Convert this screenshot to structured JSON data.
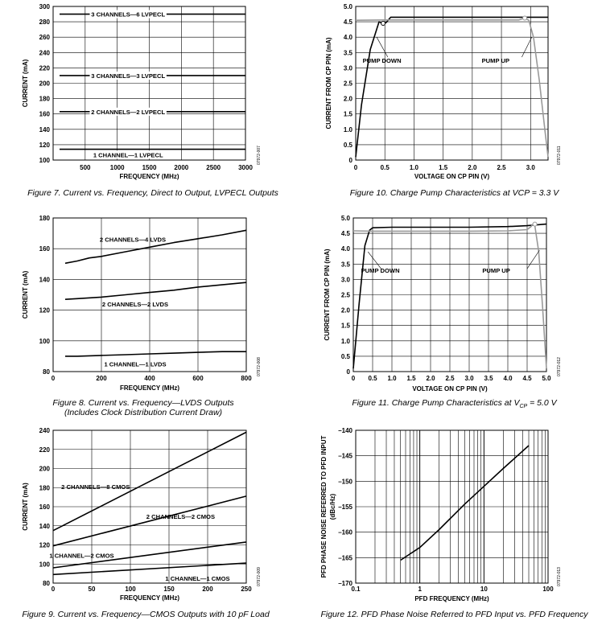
{
  "chart_data": [
    {
      "id": "fig7",
      "type": "line",
      "caption": "Figure 7. Current vs. Frequency, Direct to Output, LVPECL Outputs",
      "code": "07972-007",
      "xlabel": "FREQUENCY (MHz)",
      "ylabel": "CURRENT (mA)",
      "xlim": [
        0,
        3000
      ],
      "ylim": [
        100,
        300
      ],
      "xticks": [
        500,
        1000,
        1500,
        2000,
        2500,
        3000
      ],
      "yticks": [
        100,
        120,
        140,
        160,
        180,
        200,
        220,
        240,
        260,
        280,
        300
      ],
      "grid": true,
      "series": [
        {
          "x": [
            100,
            3000
          ],
          "y": [
            290,
            290
          ]
        },
        {
          "x": [
            100,
            3000
          ],
          "y": [
            210,
            210
          ]
        },
        {
          "x": [
            100,
            3000
          ],
          "y": [
            163,
            163
          ]
        },
        {
          "x": [
            100,
            3000
          ],
          "y": [
            114,
            114
          ]
        }
      ],
      "annotations": [
        {
          "text": "3 CHANNELS—6 LVPECL",
          "x": 1170,
          "y": 290
        },
        {
          "text": "3 CHANNELS—3 LVPECL",
          "x": 1170,
          "y": 210
        },
        {
          "text": "2 CHANNELS—2 LVPECL",
          "x": 1170,
          "y": 163
        },
        {
          "text": "1 CHANNEL—1 LVPECL",
          "x": 1170,
          "y": 107
        }
      ]
    },
    {
      "id": "fig10",
      "type": "line",
      "caption": "Figure 10. Charge Pump Characteristics at VCP = 3.3 V",
      "code": "07972-011",
      "xlabel": "VOLTAGE ON CP PIN (V)",
      "ylabel": "CURRENT FROM CP PIN (mA)",
      "xlim": [
        0,
        3.3
      ],
      "ylim": [
        0,
        5.0
      ],
      "xticks": [
        "0",
        "0.5",
        "1.0",
        "1.5",
        "2.0",
        "2.5",
        "3.0"
      ],
      "yticks": [
        "0",
        "0.5",
        "1.0",
        "1.5",
        "2.0",
        "2.5",
        "3.0",
        "3.5",
        "4.0",
        "4.5",
        "5.0"
      ],
      "grid": true,
      "series": [
        {
          "color": "#000000",
          "x": [
            0,
            0.1,
            0.25,
            0.4,
            0.47,
            0.52,
            0.6,
            1.0,
            2.0,
            3.0,
            3.3
          ],
          "y": [
            0.1,
            1.8,
            3.6,
            4.5,
            4.45,
            4.47,
            4.65,
            4.65,
            4.65,
            4.65,
            4.65
          ]
        },
        {
          "color": "#999999",
          "x": [
            0,
            0.5,
            1.0,
            2.0,
            2.8,
            2.9,
            2.97,
            3.05,
            3.15,
            3.25,
            3.3
          ],
          "y": [
            4.55,
            4.56,
            4.56,
            4.56,
            4.56,
            4.62,
            4.55,
            4.0,
            2.6,
            0.9,
            0.1
          ]
        }
      ],
      "annotations": [
        {
          "text": "PUMP DOWN",
          "x": 0.45,
          "y": 3.25
        },
        {
          "text": "PUMP UP",
          "x": 2.4,
          "y": 3.25
        }
      ]
    },
    {
      "id": "fig8",
      "type": "line",
      "caption": "Figure 8. Current vs. Frequency—LVDS Outputs",
      "caption2": "(Includes Clock Distribution Current Draw)",
      "code": "07972-008",
      "xlabel": "FREQUENCY (MHz)",
      "ylabel": "CURRENT (mA)",
      "xlim": [
        0,
        800
      ],
      "ylim": [
        80,
        180
      ],
      "xticks": [
        0,
        200,
        400,
        600,
        800
      ],
      "yticks": [
        80,
        100,
        120,
        140,
        160,
        180
      ],
      "grid": true,
      "series": [
        {
          "x": [
            50,
            100,
            150,
            200,
            300,
            400,
            500,
            600,
            700,
            800
          ],
          "y": [
            150.5,
            152,
            154,
            155,
            158,
            161,
            164,
            166.5,
            169,
            172
          ]
        },
        {
          "x": [
            50,
            100,
            200,
            300,
            400,
            500,
            600,
            700,
            800
          ],
          "y": [
            127,
            127.5,
            128.5,
            130,
            131.5,
            133,
            135,
            136.5,
            138
          ]
        },
        {
          "x": [
            50,
            100,
            200,
            300,
            400,
            500,
            600,
            700,
            800
          ],
          "y": [
            90,
            90,
            90.5,
            91,
            91.5,
            92,
            92.5,
            93,
            93
          ]
        }
      ],
      "annotations": [
        {
          "text": "2 CHANNELS—4 LVDS",
          "x": 330,
          "y": 166
        },
        {
          "text": "2 CHANNELS—2 LVDS",
          "x": 340,
          "y": 124
        },
        {
          "text": "1 CHANNEL—1 LVDS",
          "x": 340,
          "y": 85
        }
      ]
    },
    {
      "id": "fig11",
      "type": "line",
      "caption": "Figure 11. Charge Pump Characteristics at V",
      "caption_sub": "CP",
      "caption_end": " = 5.0 V",
      "code": "07972-012",
      "xlabel": "VOLTAGE ON CP PIN (V)",
      "ylabel": "CURRENT FROM CP PIN (mA)",
      "xlim": [
        0,
        5.0
      ],
      "ylim": [
        0,
        5.0
      ],
      "xticks": [
        "0",
        "0.5",
        "1.0",
        "1.5",
        "2.0",
        "2.5",
        "3.0",
        "3.5",
        "4.0",
        "4.5",
        "5.0"
      ],
      "yticks": [
        "0",
        "0.5",
        "1.0",
        "1.5",
        "2.0",
        "2.5",
        "3.0",
        "3.5",
        "4.0",
        "4.5",
        "5.0"
      ],
      "grid": true,
      "series": [
        {
          "color": "#000000",
          "x": [
            0,
            0.15,
            0.3,
            0.42,
            0.5,
            1.0,
            2.0,
            3.0,
            4.0,
            4.5,
            5.0
          ],
          "y": [
            0.1,
            2.2,
            4.1,
            4.6,
            4.68,
            4.7,
            4.7,
            4.7,
            4.72,
            4.75,
            4.8
          ]
        },
        {
          "color": "#999999",
          "x": [
            0,
            0.5,
            1.0,
            2.0,
            3.0,
            4.0,
            4.5,
            4.6,
            4.65,
            4.7,
            4.8,
            4.9,
            5.0
          ],
          "y": [
            4.58,
            4.57,
            4.57,
            4.57,
            4.57,
            4.58,
            4.62,
            4.72,
            4.8,
            4.75,
            3.9,
            2.1,
            0.1
          ]
        }
      ],
      "annotations": [
        {
          "text": "PUMP DOWN",
          "x": 0.7,
          "y": 3.3
        },
        {
          "text": "PUMP UP",
          "x": 3.7,
          "y": 3.3
        }
      ]
    },
    {
      "id": "fig9",
      "type": "line",
      "caption": "Figure 9. Current vs. Frequency—CMOS Outputs with 10 pF Load",
      "code": "07972-009",
      "xlabel": "FREQUENCY (MHz)",
      "ylabel": "CURRENT (mA)",
      "xlim": [
        0,
        250
      ],
      "ylim": [
        80,
        240
      ],
      "xticks": [
        0,
        50,
        100,
        150,
        200,
        250
      ],
      "yticks": [
        80,
        100,
        120,
        140,
        160,
        180,
        200,
        220,
        240
      ],
      "grid": true,
      "series": [
        {
          "x": [
            0,
            250
          ],
          "y": [
            135,
            238
          ]
        },
        {
          "x": [
            0,
            250
          ],
          "y": [
            119,
            171
          ]
        },
        {
          "x": [
            0,
            250
          ],
          "y": [
            96,
            123
          ]
        },
        {
          "x": [
            0,
            250
          ],
          "y": [
            89,
            101
          ]
        }
      ],
      "annotations": [
        {
          "text": "2 CHANNELS—8 CMOS",
          "x": 55,
          "y": 181
        },
        {
          "text": "2 CHANNELS—2 CMOS",
          "x": 165,
          "y": 150
        },
        {
          "text": "1 CHANNEL—2 CMOS",
          "x": 37,
          "y": 109
        },
        {
          "text": "1 CHANNEL—1 CMOS",
          "x": 187,
          "y": 85
        }
      ]
    },
    {
      "id": "fig12",
      "type": "line",
      "xscale": "log",
      "caption": "Figure 12. PFD Phase Noise Referred to PFD Input vs. PFD Frequency",
      "code": "07972-013",
      "xlabel": "PFD FREQUENCY (MHz)",
      "ylabel": "PFD PHASE NOISE REFERRED TO PFD INPUT",
      "ylabel2": "(dBc/Hz)",
      "xlim": [
        0.1,
        100
      ],
      "ylim": [
        -170,
        -140
      ],
      "xticks": [
        "0.1",
        "1",
        "10",
        "100"
      ],
      "yticks": [
        "–140",
        "–145",
        "–150",
        "–155",
        "–160",
        "–165",
        "–170"
      ],
      "grid": true,
      "series": [
        {
          "x": [
            0.5,
            1,
            2,
            5,
            10,
            20,
            50
          ],
          "y": [
            -165.5,
            -163,
            -159.5,
            -154.5,
            -151,
            -147.5,
            -143
          ]
        }
      ],
      "annotations": []
    }
  ]
}
